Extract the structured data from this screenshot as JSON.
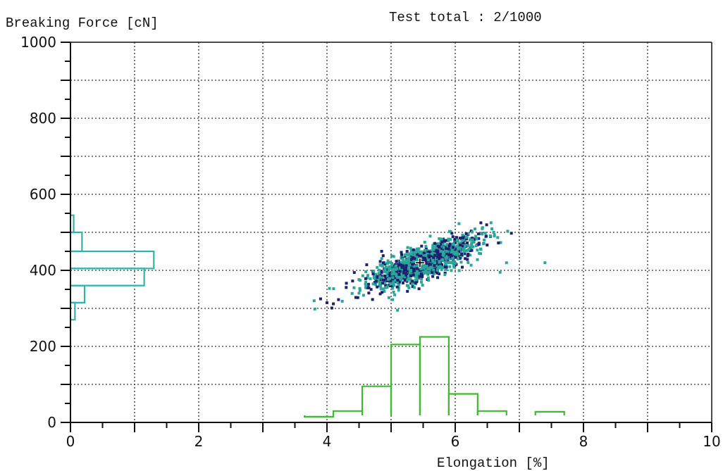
{
  "chart_data": {
    "type": "scatter",
    "title": "Test total : 2/1000",
    "ylabel": "Breaking Force [cN]",
    "xlabel": "Elongation [%]",
    "xlim": [
      0,
      10
    ],
    "ylim": [
      0,
      1000
    ],
    "x_ticks": [
      "0",
      "2",
      "4",
      "6",
      "8",
      "10"
    ],
    "y_ticks": [
      "0",
      "200",
      "400",
      "600",
      "800",
      "1000"
    ],
    "grid": true,
    "colors": {
      "dark_series": "#1e1f6e",
      "teal_series": "#2aa79a",
      "x_histogram": "#3dbb2e",
      "y_histogram": "#2fb3b0",
      "axis": "#111111",
      "grid": "#333333"
    },
    "mean_marker": {
      "x": 5.45,
      "y": 420
    },
    "x_histogram": {
      "bins": [
        {
          "x0": 3.65,
          "x1": 4.1,
          "height": 15
        },
        {
          "x0": 4.1,
          "x1": 4.55,
          "height": 30
        },
        {
          "x0": 4.55,
          "x1": 5.0,
          "height": 95
        },
        {
          "x0": 5.0,
          "x1": 5.45,
          "height": 205
        },
        {
          "x0": 5.45,
          "x1": 5.9,
          "height": 225
        },
        {
          "x0": 5.9,
          "x1": 6.35,
          "height": 75
        },
        {
          "x0": 6.35,
          "x1": 6.8,
          "height": 30
        },
        {
          "x0": 7.25,
          "x1": 7.7,
          "height": 28
        }
      ]
    },
    "y_histogram": {
      "bins": [
        {
          "y0": 270,
          "y1": 315,
          "width": 0.07
        },
        {
          "y0": 315,
          "y1": 360,
          "width": 0.22
        },
        {
          "y0": 360,
          "y1": 405,
          "width": 1.15
        },
        {
          "y0": 405,
          "y1": 450,
          "width": 1.3
        },
        {
          "y0": 450,
          "y1": 500,
          "width": 0.18
        },
        {
          "y0": 500,
          "y1": 545,
          "width": 0.05
        }
      ]
    }
  }
}
